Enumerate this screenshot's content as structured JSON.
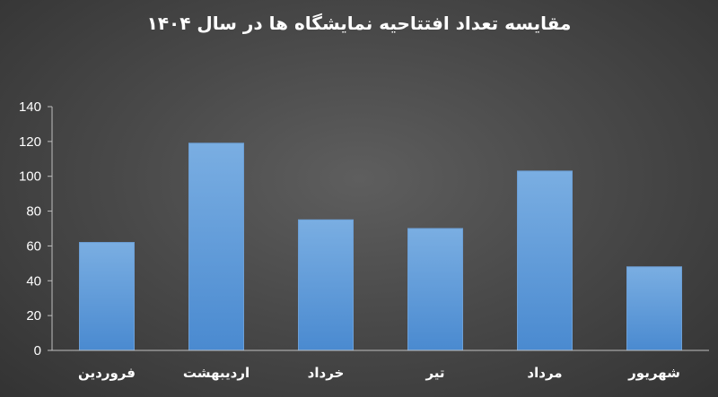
{
  "chart_data": {
    "type": "bar",
    "title": "مقایسه تعداد افتتاحیه نمایشگاه ها در سال ۱۴۰۴",
    "categories": [
      "فروردین",
      "اردیبهشت",
      "خرداد",
      "تیر",
      "مرداد",
      "شهریور"
    ],
    "series": [
      {
        "values": [
          62,
          119,
          75,
          70,
          103,
          48
        ]
      }
    ],
    "ylim": [
      0,
      140
    ],
    "yticks": [
      0,
      20,
      40,
      60,
      80,
      100,
      120,
      140
    ],
    "xlabel": "",
    "ylabel": "",
    "grid": false,
    "legend": "none",
    "colors": {
      "bar_top": "#7aaee2",
      "bar_bottom": "#4a8ad0",
      "axis": "#bfbfbf",
      "text": "#ffffff"
    }
  }
}
